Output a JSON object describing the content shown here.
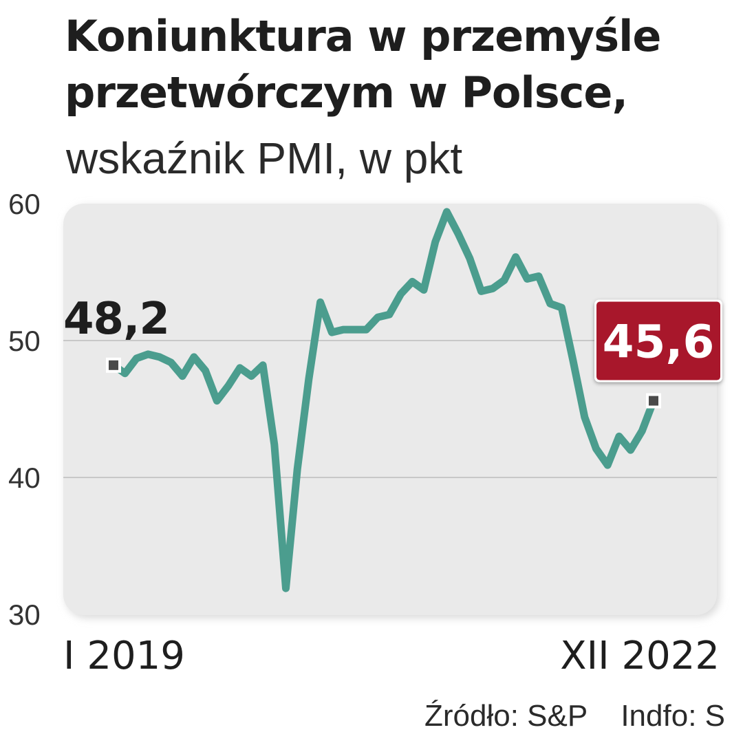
{
  "chart_data": {
    "type": "line",
    "title": "Koniunktura w przemyśle przetwórczym w Polsce,",
    "subtitle": "wskaźnik PMI, w pkt",
    "xlabel": "",
    "ylabel": "",
    "ylim": [
      30,
      60
    ],
    "yticks": [
      30,
      40,
      50,
      60
    ],
    "grid": true,
    "x_tick_labels": [
      "I 2019",
      "XII 2022"
    ],
    "x": [
      "2019-01",
      "2019-02",
      "2019-03",
      "2019-04",
      "2019-05",
      "2019-06",
      "2019-07",
      "2019-08",
      "2019-09",
      "2019-10",
      "2019-11",
      "2019-12",
      "2020-01",
      "2020-02",
      "2020-03",
      "2020-04",
      "2020-05",
      "2020-06",
      "2020-07",
      "2020-08",
      "2020-09",
      "2020-10",
      "2020-11",
      "2020-12",
      "2021-01",
      "2021-02",
      "2021-03",
      "2021-04",
      "2021-05",
      "2021-06",
      "2021-07",
      "2021-08",
      "2021-09",
      "2021-10",
      "2021-11",
      "2021-12",
      "2022-01",
      "2022-02",
      "2022-03",
      "2022-04",
      "2022-05",
      "2022-06",
      "2022-07",
      "2022-08",
      "2022-09",
      "2022-10",
      "2022-11",
      "2022-12"
    ],
    "series": [
      {
        "values": [
          48.2,
          47.6,
          48.7,
          49.0,
          48.8,
          48.4,
          47.4,
          48.8,
          47.8,
          45.6,
          46.7,
          48.0,
          47.4,
          48.2,
          42.4,
          31.9,
          40.6,
          47.2,
          52.8,
          50.6,
          50.8,
          50.8,
          50.8,
          51.7,
          51.9,
          53.4,
          54.3,
          53.7,
          57.2,
          59.4,
          57.8,
          56.0,
          53.6,
          53.8,
          54.4,
          56.1,
          54.5,
          54.7,
          52.7,
          52.4,
          48.5,
          44.4,
          42.1,
          40.9,
          43.0,
          42.0,
          43.4,
          45.6
        ],
        "color": "#4b9d8e"
      }
    ],
    "annotations": [
      {
        "label": "48,2",
        "x": "2019-01",
        "y": 48.2
      },
      {
        "label": "45,6",
        "x": "2022-12",
        "y": 45.6,
        "highlight": "#a8172b"
      }
    ],
    "source": "Źródło: S&P    Indfo: S"
  }
}
